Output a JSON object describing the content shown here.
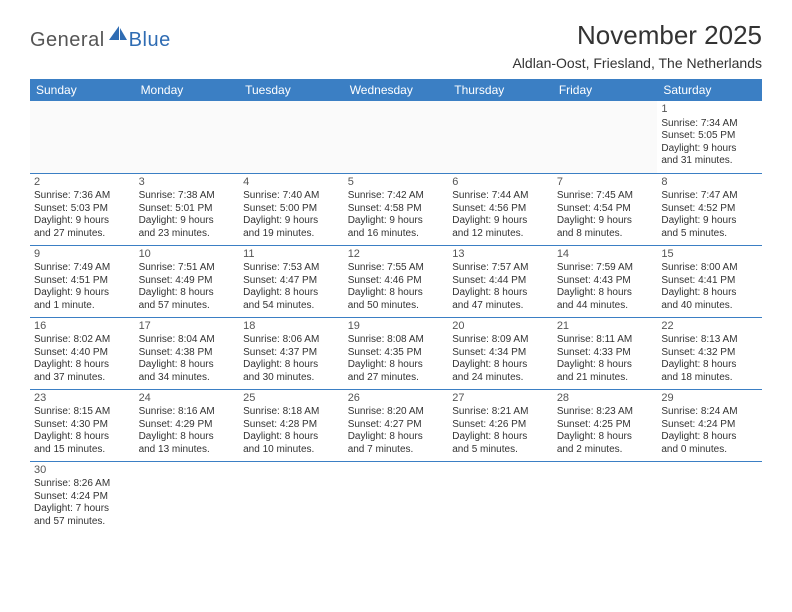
{
  "brand": {
    "general": "General",
    "blue": "Blue"
  },
  "title": "November 2025",
  "location": "Aldlan-Oost, Friesland, The Netherlands",
  "colors": {
    "header_bg": "#3b7fc4",
    "header_text": "#ffffff",
    "border": "#3b7fc4",
    "text": "#333333",
    "logo_general": "#555555",
    "logo_blue": "#2f6cb3",
    "background": "#ffffff"
  },
  "dayNames": [
    "Sunday",
    "Monday",
    "Tuesday",
    "Wednesday",
    "Thursday",
    "Friday",
    "Saturday"
  ],
  "weeks": [
    [
      null,
      null,
      null,
      null,
      null,
      null,
      {
        "n": "1",
        "sr": "Sunrise: 7:34 AM",
        "ss": "Sunset: 5:05 PM",
        "d1": "Daylight: 9 hours",
        "d2": "and 31 minutes."
      }
    ],
    [
      {
        "n": "2",
        "sr": "Sunrise: 7:36 AM",
        "ss": "Sunset: 5:03 PM",
        "d1": "Daylight: 9 hours",
        "d2": "and 27 minutes."
      },
      {
        "n": "3",
        "sr": "Sunrise: 7:38 AM",
        "ss": "Sunset: 5:01 PM",
        "d1": "Daylight: 9 hours",
        "d2": "and 23 minutes."
      },
      {
        "n": "4",
        "sr": "Sunrise: 7:40 AM",
        "ss": "Sunset: 5:00 PM",
        "d1": "Daylight: 9 hours",
        "d2": "and 19 minutes."
      },
      {
        "n": "5",
        "sr": "Sunrise: 7:42 AM",
        "ss": "Sunset: 4:58 PM",
        "d1": "Daylight: 9 hours",
        "d2": "and 16 minutes."
      },
      {
        "n": "6",
        "sr": "Sunrise: 7:44 AM",
        "ss": "Sunset: 4:56 PM",
        "d1": "Daylight: 9 hours",
        "d2": "and 12 minutes."
      },
      {
        "n": "7",
        "sr": "Sunrise: 7:45 AM",
        "ss": "Sunset: 4:54 PM",
        "d1": "Daylight: 9 hours",
        "d2": "and 8 minutes."
      },
      {
        "n": "8",
        "sr": "Sunrise: 7:47 AM",
        "ss": "Sunset: 4:52 PM",
        "d1": "Daylight: 9 hours",
        "d2": "and 5 minutes."
      }
    ],
    [
      {
        "n": "9",
        "sr": "Sunrise: 7:49 AM",
        "ss": "Sunset: 4:51 PM",
        "d1": "Daylight: 9 hours",
        "d2": "and 1 minute."
      },
      {
        "n": "10",
        "sr": "Sunrise: 7:51 AM",
        "ss": "Sunset: 4:49 PM",
        "d1": "Daylight: 8 hours",
        "d2": "and 57 minutes."
      },
      {
        "n": "11",
        "sr": "Sunrise: 7:53 AM",
        "ss": "Sunset: 4:47 PM",
        "d1": "Daylight: 8 hours",
        "d2": "and 54 minutes."
      },
      {
        "n": "12",
        "sr": "Sunrise: 7:55 AM",
        "ss": "Sunset: 4:46 PM",
        "d1": "Daylight: 8 hours",
        "d2": "and 50 minutes."
      },
      {
        "n": "13",
        "sr": "Sunrise: 7:57 AM",
        "ss": "Sunset: 4:44 PM",
        "d1": "Daylight: 8 hours",
        "d2": "and 47 minutes."
      },
      {
        "n": "14",
        "sr": "Sunrise: 7:59 AM",
        "ss": "Sunset: 4:43 PM",
        "d1": "Daylight: 8 hours",
        "d2": "and 44 minutes."
      },
      {
        "n": "15",
        "sr": "Sunrise: 8:00 AM",
        "ss": "Sunset: 4:41 PM",
        "d1": "Daylight: 8 hours",
        "d2": "and 40 minutes."
      }
    ],
    [
      {
        "n": "16",
        "sr": "Sunrise: 8:02 AM",
        "ss": "Sunset: 4:40 PM",
        "d1": "Daylight: 8 hours",
        "d2": "and 37 minutes."
      },
      {
        "n": "17",
        "sr": "Sunrise: 8:04 AM",
        "ss": "Sunset: 4:38 PM",
        "d1": "Daylight: 8 hours",
        "d2": "and 34 minutes."
      },
      {
        "n": "18",
        "sr": "Sunrise: 8:06 AM",
        "ss": "Sunset: 4:37 PM",
        "d1": "Daylight: 8 hours",
        "d2": "and 30 minutes."
      },
      {
        "n": "19",
        "sr": "Sunrise: 8:08 AM",
        "ss": "Sunset: 4:35 PM",
        "d1": "Daylight: 8 hours",
        "d2": "and 27 minutes."
      },
      {
        "n": "20",
        "sr": "Sunrise: 8:09 AM",
        "ss": "Sunset: 4:34 PM",
        "d1": "Daylight: 8 hours",
        "d2": "and 24 minutes."
      },
      {
        "n": "21",
        "sr": "Sunrise: 8:11 AM",
        "ss": "Sunset: 4:33 PM",
        "d1": "Daylight: 8 hours",
        "d2": "and 21 minutes."
      },
      {
        "n": "22",
        "sr": "Sunrise: 8:13 AM",
        "ss": "Sunset: 4:32 PM",
        "d1": "Daylight: 8 hours",
        "d2": "and 18 minutes."
      }
    ],
    [
      {
        "n": "23",
        "sr": "Sunrise: 8:15 AM",
        "ss": "Sunset: 4:30 PM",
        "d1": "Daylight: 8 hours",
        "d2": "and 15 minutes."
      },
      {
        "n": "24",
        "sr": "Sunrise: 8:16 AM",
        "ss": "Sunset: 4:29 PM",
        "d1": "Daylight: 8 hours",
        "d2": "and 13 minutes."
      },
      {
        "n": "25",
        "sr": "Sunrise: 8:18 AM",
        "ss": "Sunset: 4:28 PM",
        "d1": "Daylight: 8 hours",
        "d2": "and 10 minutes."
      },
      {
        "n": "26",
        "sr": "Sunrise: 8:20 AM",
        "ss": "Sunset: 4:27 PM",
        "d1": "Daylight: 8 hours",
        "d2": "and 7 minutes."
      },
      {
        "n": "27",
        "sr": "Sunrise: 8:21 AM",
        "ss": "Sunset: 4:26 PM",
        "d1": "Daylight: 8 hours",
        "d2": "and 5 minutes."
      },
      {
        "n": "28",
        "sr": "Sunrise: 8:23 AM",
        "ss": "Sunset: 4:25 PM",
        "d1": "Daylight: 8 hours",
        "d2": "and 2 minutes."
      },
      {
        "n": "29",
        "sr": "Sunrise: 8:24 AM",
        "ss": "Sunset: 4:24 PM",
        "d1": "Daylight: 8 hours",
        "d2": "and 0 minutes."
      }
    ],
    [
      {
        "n": "30",
        "sr": "Sunrise: 8:26 AM",
        "ss": "Sunset: 4:24 PM",
        "d1": "Daylight: 7 hours",
        "d2": "and 57 minutes."
      },
      null,
      null,
      null,
      null,
      null,
      null
    ]
  ]
}
